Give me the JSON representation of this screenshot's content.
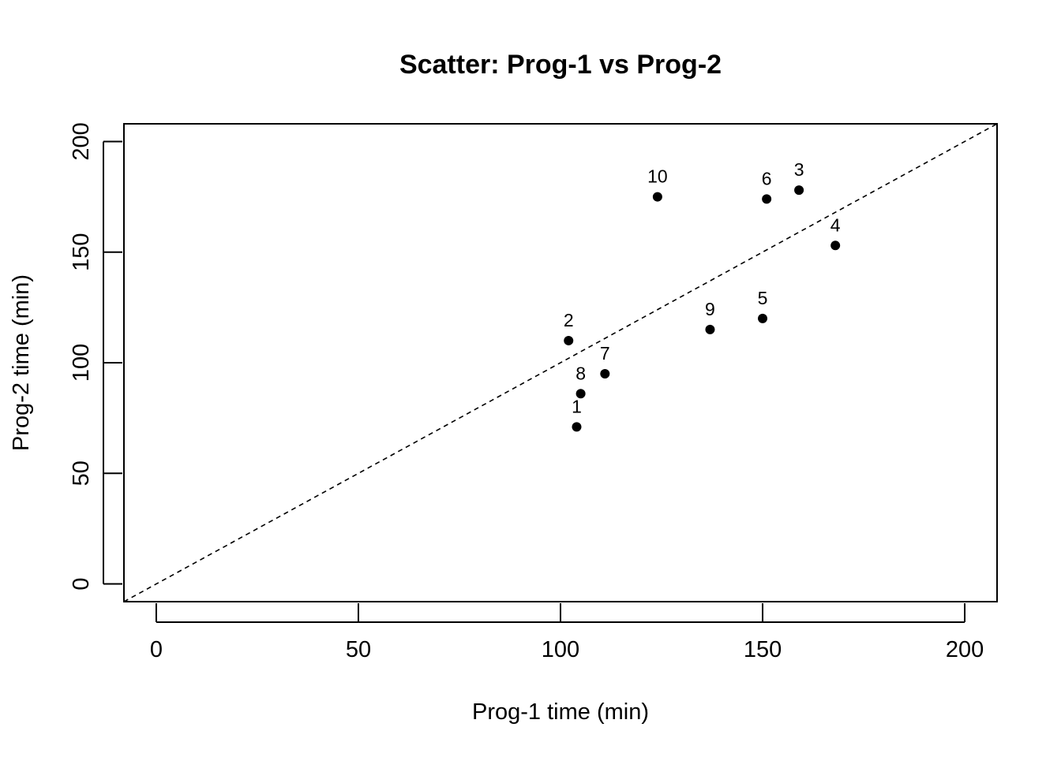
{
  "chart_data": {
    "type": "scatter",
    "title": "Scatter: Prog-1 vs Prog-2",
    "xlabel": "Prog-1 time (min)",
    "ylabel": "Prog-2 time (min)",
    "xlim": [
      -8,
      208
    ],
    "ylim": [
      -8,
      208
    ],
    "x_ticks": [
      0,
      50,
      100,
      150,
      200
    ],
    "y_ticks": [
      0,
      50,
      100,
      150,
      200
    ],
    "x_tick_labels": [
      "0",
      "50",
      "100",
      "150",
      "200"
    ],
    "y_tick_labels": [
      "0",
      "50",
      "100",
      "150",
      "200"
    ],
    "grid": false,
    "reference_line": {
      "type": "y=x",
      "style": "dashed"
    },
    "points": [
      {
        "label": "1",
        "x": 104,
        "y": 71
      },
      {
        "label": "2",
        "x": 102,
        "y": 110
      },
      {
        "label": "3",
        "x": 159,
        "y": 178
      },
      {
        "label": "4",
        "x": 168,
        "y": 153
      },
      {
        "label": "5",
        "x": 150,
        "y": 120
      },
      {
        "label": "6",
        "x": 151,
        "y": 174
      },
      {
        "label": "7",
        "x": 111,
        "y": 95
      },
      {
        "label": "8",
        "x": 105,
        "y": 86
      },
      {
        "label": "9",
        "x": 137,
        "y": 115
      },
      {
        "label": "10",
        "x": 124,
        "y": 175
      }
    ],
    "marker_color": "#000000",
    "line_color": "#000000"
  }
}
